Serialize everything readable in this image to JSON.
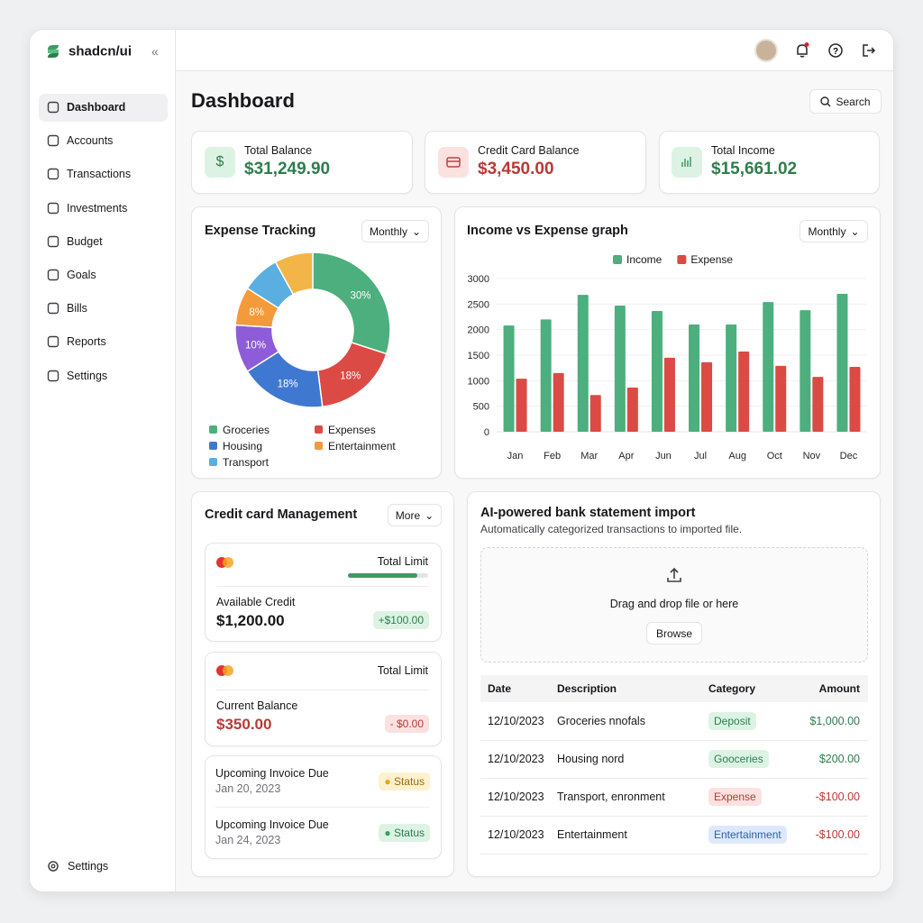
{
  "sidebar": {
    "brand": "shadcn/ui",
    "nav": [
      "Dashboard",
      "Accounts",
      "Transactions",
      "Investments",
      "Budget",
      "Goals",
      "Bills",
      "Reports",
      "Settings"
    ],
    "footer": "Settings"
  },
  "header": {
    "title": "Dashboard",
    "search": "Search"
  },
  "stats": [
    {
      "label": "Total Balance",
      "value": "$31,249.90"
    },
    {
      "label": "Credit Card Balance",
      "value": "$3,450.00"
    },
    {
      "label": "Total Income",
      "value": "$15,661.02"
    }
  ],
  "chart_data": [
    {
      "type": "pie",
      "title": "Expense Tracking",
      "control": "Monthly",
      "categories": [
        "Groceries",
        "Expenses",
        "Housing",
        null,
        "Entertainment",
        "Transport",
        null
      ],
      "values": [
        30,
        18,
        18,
        10,
        8,
        8,
        8
      ],
      "value_labels": [
        "30%",
        "18%",
        "18%",
        "10%",
        "8%",
        null,
        null
      ],
      "colors": [
        "#4caf7d",
        "#dc4a45",
        "#3f78d0",
        "#8e5cd9",
        "#f39a3b",
        "#5aaee0",
        "#f3b548"
      ]
    },
    {
      "type": "bar",
      "title": "Income vs Expense graph",
      "control": "Monthly",
      "categories": [
        "Jan",
        "Feb",
        "Mar",
        "Apr",
        "Jun",
        "Jul",
        "Aug",
        "Oct",
        "Nov",
        "Dec"
      ],
      "series": [
        {
          "name": "Income",
          "color": "#4caf7d",
          "values": [
            2080,
            2200,
            2680,
            2470,
            2365,
            2100,
            2100,
            2540,
            2380,
            2700
          ]
        },
        {
          "name": "Expense",
          "color": "#dc4a45",
          "values": [
            1040,
            1150,
            720,
            865,
            1450,
            1360,
            1570,
            1290,
            1075,
            1270
          ]
        }
      ],
      "ylim": [
        0,
        3000
      ],
      "yticks": [
        0,
        500,
        1000,
        1500,
        2000,
        2500,
        3000
      ],
      "grid": true,
      "legend": "top"
    }
  ],
  "credit": {
    "title": "Credit card Management",
    "control": "More",
    "cards": [
      {
        "limit": "Total Limit",
        "label": "Available Credit",
        "amount": "$1,200.00",
        "change": "+$100.00"
      },
      {
        "limit": "Total Limit",
        "label": "Current Balance",
        "amount": "$350.00",
        "change": "- $0.00"
      }
    ],
    "invoices": [
      {
        "label": "Upcoming Invoice Due",
        "date": "Jan 20, 2023",
        "status": "Status"
      },
      {
        "label": "Upcoming Invoice Due",
        "date": "Jan 24, 2023",
        "status": "Status"
      }
    ]
  },
  "import": {
    "title": "AI-powered bank statement import",
    "subtitle": "Automatically categorized transactions to imported file.",
    "drop": "Drag and drop file or here",
    "browse": "Browse",
    "table": {
      "headers": [
        "Date",
        "Description",
        "Category",
        "Amount"
      ],
      "rows": [
        [
          "12/10/2023",
          "Groceries nnofals",
          "Deposit",
          "$1,000.00"
        ],
        [
          "12/10/2023",
          "Housing nord",
          "Gooceries",
          "$200.00"
        ],
        [
          "12/10/2023",
          "Transport, enronment",
          "Expense",
          "-$100.00"
        ],
        [
          "12/10/2023",
          "Entertainment",
          "Entertainment",
          "-$100.00"
        ]
      ]
    }
  }
}
